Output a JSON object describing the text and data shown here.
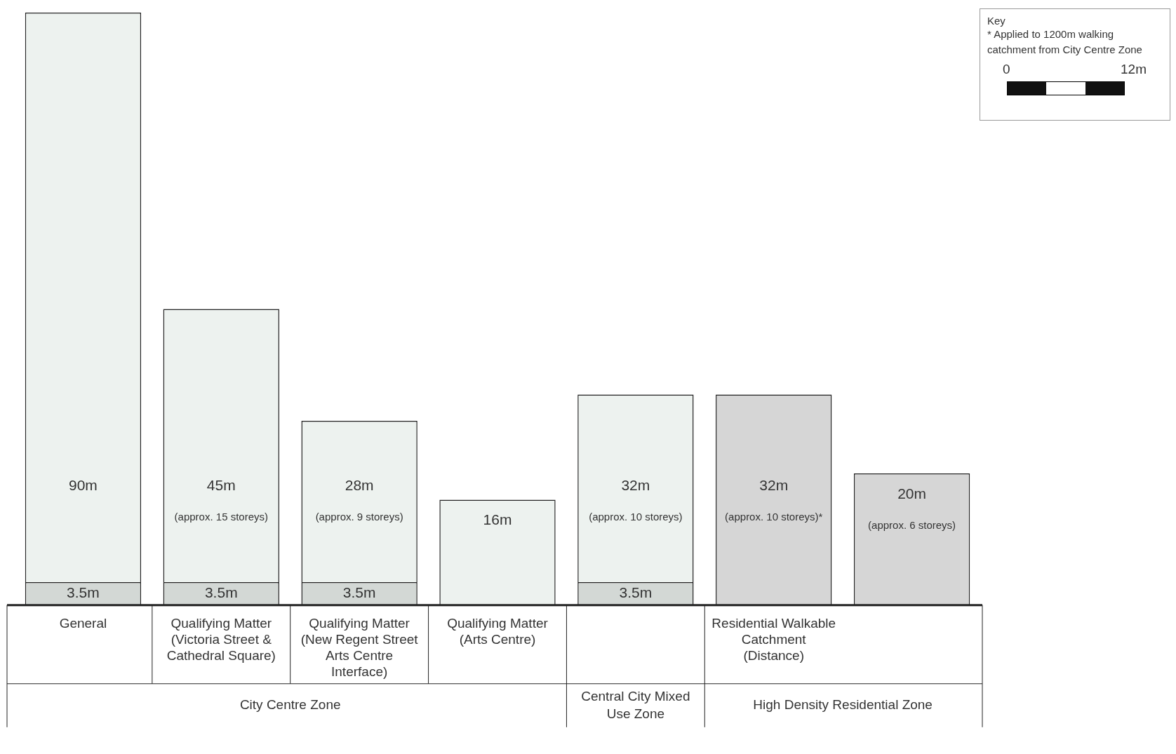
{
  "chart_data": {
    "type": "bar",
    "categories": [
      "General",
      "Qualifying Matter (Victoria Street & Cathedral Square)",
      "Qualifying Matter (New Regent Street Arts Centre Interface)",
      "Qualifying Matter (Arts Centre)",
      null,
      "Residential Walkable Catchment (Distance)",
      null
    ],
    "stacked": true,
    "series": [
      {
        "values": [
          3.5,
          3.5,
          3.5,
          null,
          3.5,
          null,
          null
        ],
        "color": "#d3d8d5",
        "value_labels": [
          "3.5m",
          "3.5m",
          "3.5m",
          null,
          "3.5m",
          null,
          null
        ]
      },
      {
        "values": [
          86.5,
          41.5,
          24.5,
          16,
          28.5,
          32,
          20
        ],
        "colors": [
          "#edf2ef",
          "#edf2ef",
          "#edf2ef",
          "#edf2ef",
          "#edf2ef",
          "#d6d6d6",
          "#d6d6d6"
        ]
      }
    ],
    "totals": [
      "90m",
      "45m",
      "28m",
      "16m",
      "32m",
      "32m",
      "20m"
    ],
    "tick_labels": "x",
    "annotations": [
      "City Centre Zone",
      "Central City Mixed Use Zone",
      "High Density Residential Zone",
      "Key",
      "* Applied to 1200m walking catchment  from City Centre Zone",
      "0",
      "12m",
      "(approx. 15 storeys)",
      "(approx. 9 storeys)",
      "(approx. 10 storeys)",
      "(approx. 10 storeys)*",
      "(approx. 6 storeys)"
    ]
  }
}
